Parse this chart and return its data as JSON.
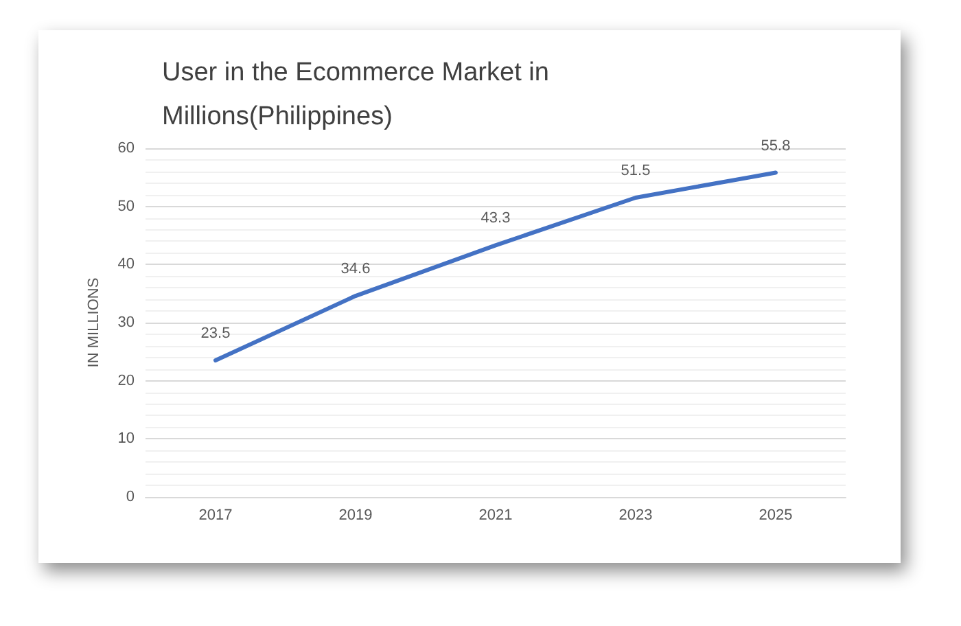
{
  "chart_data": {
    "type": "line",
    "title": "User in the Ecommerce Market in Millions(Philippines)",
    "ylabel": "IN MILLIONS",
    "categories": [
      "2017",
      "2019",
      "2021",
      "2023",
      "2025"
    ],
    "series": [
      {
        "color": "#4472c4",
        "values": [
          23.5,
          34.6,
          43.3,
          51.5,
          55.8
        ]
      }
    ],
    "ylim": [
      0,
      60
    ],
    "yticks": [
      0,
      10,
      20,
      30,
      40,
      50,
      60
    ],
    "grid": "y",
    "data_labels": true,
    "marker": "none",
    "line_style": "solid"
  }
}
